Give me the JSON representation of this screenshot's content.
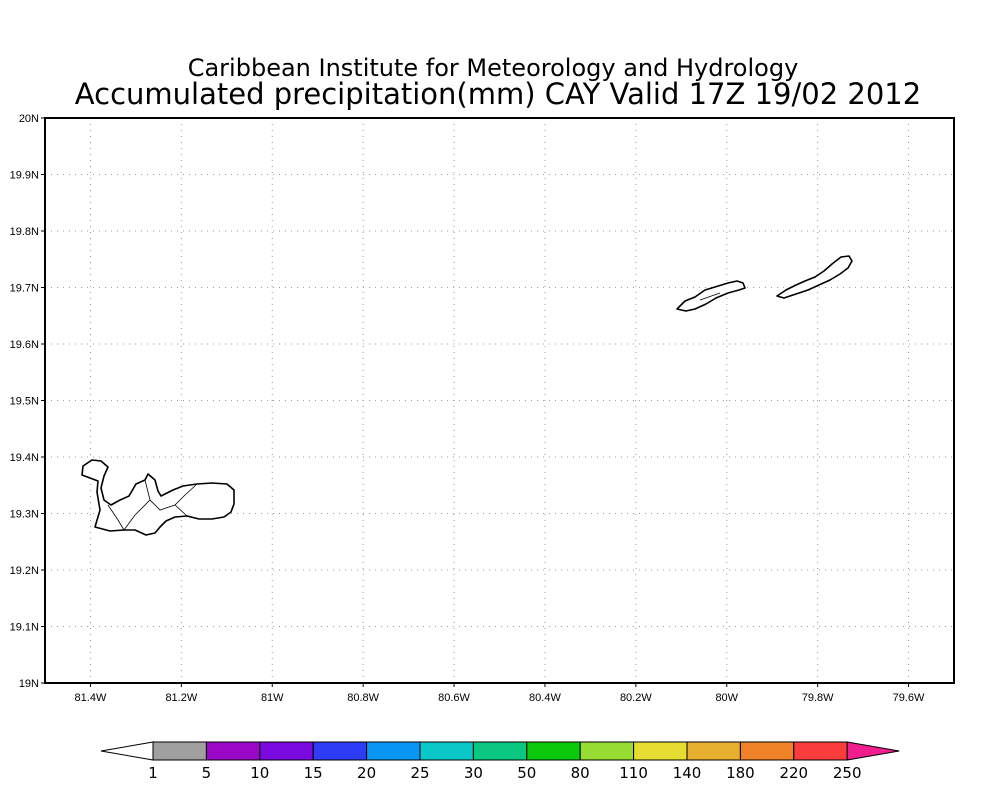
{
  "header": {
    "institution": "Caribbean Institute for Meteorology and Hydrology",
    "product": "Accumulated precipitation(mm) CAY Valid 17Z 19/02 2012"
  },
  "map": {
    "lon_range": [
      -81.5,
      -79.5
    ],
    "lat_range": [
      19.0,
      20.0
    ],
    "lon_ticks": [
      {
        "value": -81.4,
        "label": "81.4W"
      },
      {
        "value": -81.2,
        "label": "81.2W"
      },
      {
        "value": -81.0,
        "label": "81W"
      },
      {
        "value": -80.8,
        "label": "80.8W"
      },
      {
        "value": -80.6,
        "label": "80.6W"
      },
      {
        "value": -80.4,
        "label": "80.4W"
      },
      {
        "value": -80.2,
        "label": "80.2W"
      },
      {
        "value": -80.0,
        "label": "80W"
      },
      {
        "value": -79.8,
        "label": "79.8W"
      },
      {
        "value": -79.6,
        "label": "79.6W"
      }
    ],
    "lat_ticks": [
      {
        "value": 20.0,
        "label": "20N"
      },
      {
        "value": 19.9,
        "label": "19.9N"
      },
      {
        "value": 19.8,
        "label": "19.8N"
      },
      {
        "value": 19.7,
        "label": "19.7N"
      },
      {
        "value": 19.6,
        "label": "19.6N"
      },
      {
        "value": 19.5,
        "label": "19.5N"
      },
      {
        "value": 19.4,
        "label": "19.4N"
      },
      {
        "value": 19.3,
        "label": "19.3N"
      },
      {
        "value": 19.2,
        "label": "19.2N"
      },
      {
        "value": 19.1,
        "label": "19.1N"
      },
      {
        "value": 19.0,
        "label": "19N"
      }
    ],
    "grid": true,
    "islands": [
      {
        "name": "grand-cayman",
        "center_lon": -81.25,
        "center_lat": 19.32
      },
      {
        "name": "little-cayman",
        "center_lon": -80.05,
        "center_lat": 19.68
      },
      {
        "name": "cayman-brac",
        "center_lon": -79.8,
        "center_lat": 19.72
      }
    ]
  },
  "colorbar": {
    "labels": [
      "1",
      "5",
      "10",
      "15",
      "20",
      "25",
      "30",
      "50",
      "80",
      "110",
      "140",
      "180",
      "220",
      "250"
    ],
    "low_color": "#ffffff",
    "colors": [
      "#a0a0a0",
      "#9c08c8",
      "#7a0ae0",
      "#2e3cf5",
      "#0a96f5",
      "#0ac8c8",
      "#0ac882",
      "#0ac80a",
      "#96dc32",
      "#e6dc32",
      "#e6af2d",
      "#f08228",
      "#fa3c3c"
    ],
    "high_color": "#f01e8c"
  }
}
